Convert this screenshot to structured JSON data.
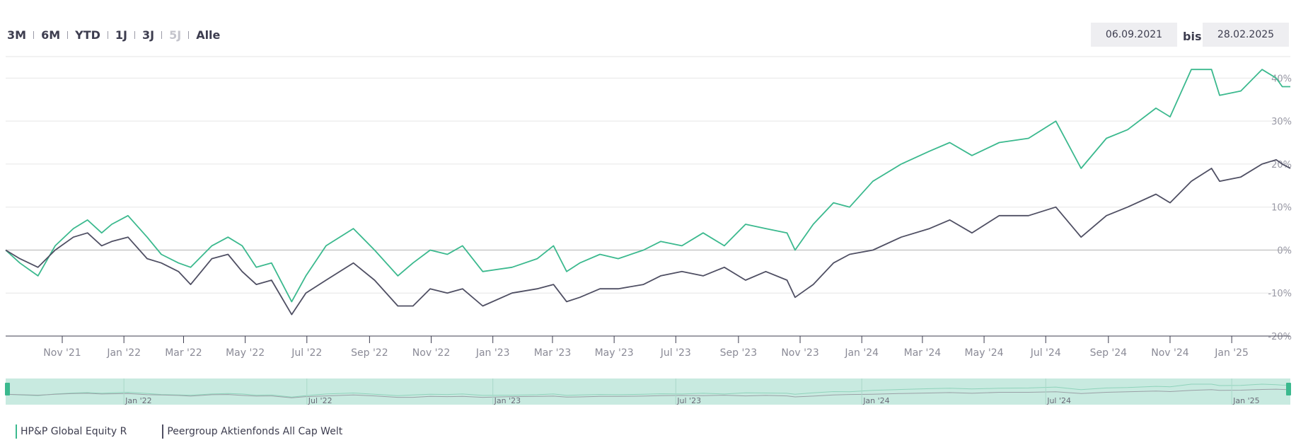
{
  "range_buttons": [
    {
      "label": "3M",
      "enabled": true
    },
    {
      "label": "6M",
      "enabled": true
    },
    {
      "label": "YTD",
      "enabled": true
    },
    {
      "label": "1J",
      "enabled": true
    },
    {
      "label": "3J",
      "enabled": true
    },
    {
      "label": "5J",
      "enabled": false
    },
    {
      "label": "Alle",
      "enabled": true
    }
  ],
  "date_range": {
    "from": "06.09.2021",
    "separator": "bis",
    "to": "28.02.2025"
  },
  "colors": {
    "fund": "#3bb98e",
    "peer": "#4f4f63",
    "navigator": "#c8eae0",
    "grid": "#e6e6e6"
  },
  "chart_data": {
    "type": "line",
    "title": "",
    "xlabel": "",
    "ylabel": "",
    "x_range": [
      "2021-09-06",
      "2025-02-28"
    ],
    "ylim": [
      -20,
      45
    ],
    "y_ticks": [
      -20,
      -10,
      0,
      10,
      20,
      30,
      40
    ],
    "y_tick_labels": [
      "-20%",
      "-10%",
      "0%",
      "10%",
      "20%",
      "30%",
      "40%"
    ],
    "x_ticks": [
      {
        "date": "2021-11-01",
        "label": "Nov '21"
      },
      {
        "date": "2022-01-01",
        "label": "Jan '22"
      },
      {
        "date": "2022-03-01",
        "label": "Mar '22"
      },
      {
        "date": "2022-05-01",
        "label": "May '22"
      },
      {
        "date": "2022-07-01",
        "label": "Jul '22"
      },
      {
        "date": "2022-09-01",
        "label": "Sep '22"
      },
      {
        "date": "2022-11-01",
        "label": "Nov '22"
      },
      {
        "date": "2023-01-01",
        "label": "Jan '23"
      },
      {
        "date": "2023-03-01",
        "label": "Mar '23"
      },
      {
        "date": "2023-05-01",
        "label": "May '23"
      },
      {
        "date": "2023-07-01",
        "label": "Jul '23"
      },
      {
        "date": "2023-09-01",
        "label": "Sep '23"
      },
      {
        "date": "2023-11-01",
        "label": "Nov '23"
      },
      {
        "date": "2024-01-01",
        "label": "Jan '24"
      },
      {
        "date": "2024-03-01",
        "label": "Mar '24"
      },
      {
        "date": "2024-05-01",
        "label": "May '24"
      },
      {
        "date": "2024-07-01",
        "label": "Jul '24"
      },
      {
        "date": "2024-09-01",
        "label": "Sep '24"
      },
      {
        "date": "2024-11-01",
        "label": "Nov '24"
      },
      {
        "date": "2025-01-01",
        "label": "Jan '25"
      }
    ],
    "navigator_ticks": [
      {
        "date": "2022-01-01",
        "label": "Jan '22"
      },
      {
        "date": "2022-07-01",
        "label": "Jul '22"
      },
      {
        "date": "2023-01-01",
        "label": "Jan '23"
      },
      {
        "date": "2023-07-01",
        "label": "Jul '23"
      },
      {
        "date": "2024-01-01",
        "label": "Jan '24"
      },
      {
        "date": "2024-07-01",
        "label": "Jul '24"
      },
      {
        "date": "2025-01-01",
        "label": "Jan '25"
      }
    ],
    "series": [
      {
        "name": "HP&P Global Equity R",
        "points": [
          [
            "2021-09-06",
            0
          ],
          [
            "2021-09-20",
            -3
          ],
          [
            "2021-10-08",
            -6
          ],
          [
            "2021-10-25",
            1
          ],
          [
            "2021-11-12",
            5
          ],
          [
            "2021-11-26",
            7
          ],
          [
            "2021-12-10",
            4
          ],
          [
            "2021-12-20",
            6
          ],
          [
            "2022-01-05",
            8
          ],
          [
            "2022-01-24",
            3
          ],
          [
            "2022-02-07",
            -1
          ],
          [
            "2022-02-24",
            -3
          ],
          [
            "2022-03-08",
            -4
          ],
          [
            "2022-03-29",
            1
          ],
          [
            "2022-04-14",
            3
          ],
          [
            "2022-04-28",
            1
          ],
          [
            "2022-05-12",
            -4
          ],
          [
            "2022-05-27",
            -3
          ],
          [
            "2022-06-16",
            -12
          ],
          [
            "2022-06-30",
            -6
          ],
          [
            "2022-07-20",
            1
          ],
          [
            "2022-08-16",
            5
          ],
          [
            "2022-09-06",
            0
          ],
          [
            "2022-09-29",
            -6
          ],
          [
            "2022-10-14",
            -3
          ],
          [
            "2022-10-31",
            0
          ],
          [
            "2022-11-17",
            -1
          ],
          [
            "2022-12-02",
            1
          ],
          [
            "2022-12-22",
            -5
          ],
          [
            "2023-01-20",
            -4
          ],
          [
            "2023-02-14",
            -2
          ],
          [
            "2023-03-02",
            1
          ],
          [
            "2023-03-15",
            -5
          ],
          [
            "2023-03-28",
            -3
          ],
          [
            "2023-04-17",
            -1
          ],
          [
            "2023-05-05",
            -2
          ],
          [
            "2023-05-30",
            0
          ],
          [
            "2023-06-16",
            2
          ],
          [
            "2023-07-07",
            1
          ],
          [
            "2023-07-28",
            4
          ],
          [
            "2023-08-18",
            1
          ],
          [
            "2023-09-08",
            6
          ],
          [
            "2023-09-28",
            5
          ],
          [
            "2023-10-19",
            4
          ],
          [
            "2023-10-27",
            0
          ],
          [
            "2023-11-14",
            6
          ],
          [
            "2023-12-04",
            11
          ],
          [
            "2023-12-20",
            10
          ],
          [
            "2024-01-12",
            16
          ],
          [
            "2024-02-09",
            20
          ],
          [
            "2024-03-08",
            23
          ],
          [
            "2024-03-28",
            25
          ],
          [
            "2024-04-19",
            22
          ],
          [
            "2024-05-16",
            25
          ],
          [
            "2024-06-14",
            26
          ],
          [
            "2024-07-11",
            30
          ],
          [
            "2024-08-05",
            19
          ],
          [
            "2024-08-30",
            26
          ],
          [
            "2024-09-20",
            28
          ],
          [
            "2024-10-18",
            33
          ],
          [
            "2024-11-01",
            31
          ],
          [
            "2024-11-22",
            42
          ],
          [
            "2024-12-12",
            42
          ],
          [
            "2024-12-20",
            36
          ],
          [
            "2025-01-10",
            37
          ],
          [
            "2025-01-31",
            42
          ],
          [
            "2025-02-14",
            40
          ],
          [
            "2025-02-20",
            38
          ],
          [
            "2025-02-28",
            38
          ]
        ]
      },
      {
        "name": "Peergroup Aktienfonds All Cap Welt",
        "points": [
          [
            "2021-09-06",
            0
          ],
          [
            "2021-09-20",
            -2
          ],
          [
            "2021-10-08",
            -4
          ],
          [
            "2021-10-25",
            0
          ],
          [
            "2021-11-12",
            3
          ],
          [
            "2021-11-26",
            4
          ],
          [
            "2021-12-10",
            1
          ],
          [
            "2021-12-20",
            2
          ],
          [
            "2022-01-05",
            3
          ],
          [
            "2022-01-24",
            -2
          ],
          [
            "2022-02-07",
            -3
          ],
          [
            "2022-02-24",
            -5
          ],
          [
            "2022-03-08",
            -8
          ],
          [
            "2022-03-29",
            -2
          ],
          [
            "2022-04-14",
            -1
          ],
          [
            "2022-04-28",
            -5
          ],
          [
            "2022-05-12",
            -8
          ],
          [
            "2022-05-27",
            -7
          ],
          [
            "2022-06-16",
            -15
          ],
          [
            "2022-06-30",
            -10
          ],
          [
            "2022-07-20",
            -7
          ],
          [
            "2022-08-16",
            -3
          ],
          [
            "2022-09-06",
            -7
          ],
          [
            "2022-09-29",
            -13
          ],
          [
            "2022-10-14",
            -13
          ],
          [
            "2022-10-31",
            -9
          ],
          [
            "2022-11-17",
            -10
          ],
          [
            "2022-12-02",
            -9
          ],
          [
            "2022-12-22",
            -13
          ],
          [
            "2023-01-20",
            -10
          ],
          [
            "2023-02-14",
            -9
          ],
          [
            "2023-03-02",
            -8
          ],
          [
            "2023-03-15",
            -12
          ],
          [
            "2023-03-28",
            -11
          ],
          [
            "2023-04-17",
            -9
          ],
          [
            "2023-05-05",
            -9
          ],
          [
            "2023-05-30",
            -8
          ],
          [
            "2023-06-16",
            -6
          ],
          [
            "2023-07-07",
            -5
          ],
          [
            "2023-07-28",
            -6
          ],
          [
            "2023-08-18",
            -4
          ],
          [
            "2023-09-08",
            -7
          ],
          [
            "2023-09-28",
            -5
          ],
          [
            "2023-10-19",
            -7
          ],
          [
            "2023-10-27",
            -11
          ],
          [
            "2023-11-14",
            -8
          ],
          [
            "2023-12-04",
            -3
          ],
          [
            "2023-12-20",
            -1
          ],
          [
            "2024-01-12",
            0
          ],
          [
            "2024-02-09",
            3
          ],
          [
            "2024-03-08",
            5
          ],
          [
            "2024-03-28",
            7
          ],
          [
            "2024-04-19",
            4
          ],
          [
            "2024-05-16",
            8
          ],
          [
            "2024-06-14",
            8
          ],
          [
            "2024-07-11",
            10
          ],
          [
            "2024-08-05",
            3
          ],
          [
            "2024-08-30",
            8
          ],
          [
            "2024-09-20",
            10
          ],
          [
            "2024-10-18",
            13
          ],
          [
            "2024-11-01",
            11
          ],
          [
            "2024-11-22",
            16
          ],
          [
            "2024-12-12",
            19
          ],
          [
            "2024-12-20",
            16
          ],
          [
            "2025-01-10",
            17
          ],
          [
            "2025-01-31",
            20
          ],
          [
            "2025-02-14",
            21
          ],
          [
            "2025-02-20",
            20
          ],
          [
            "2025-02-28",
            19
          ]
        ]
      }
    ]
  }
}
